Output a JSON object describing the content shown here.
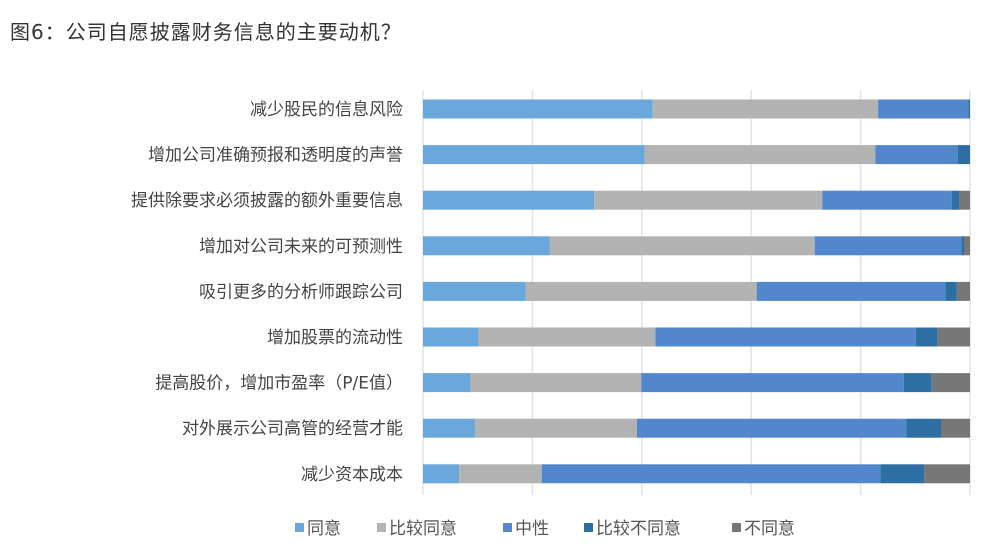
{
  "title": "图6：公司自愿披露财务信息的主要动机？",
  "chart_data": {
    "type": "bar",
    "orientation": "horizontal",
    "stacked": "percent",
    "title": "图6：公司自愿披露财务信息的主要动机？",
    "xlabel": "",
    "ylabel": "",
    "xlim": [
      0,
      100
    ],
    "grid": true,
    "legend": "bottom",
    "categories": [
      "减少股民的信息风险",
      "增加公司准确预报和透明度的声誉",
      "提供除要求必须披露的额外重要信息",
      "增加对公司未来的可预测性",
      "吸引更多的分析师跟踪公司",
      "增加股票的流动性",
      "提高股价，增加市盈率（P/E值）",
      "对外展示公司高管的经营才能",
      "减少资本成本"
    ],
    "series": [
      {
        "name": "同意",
        "color": "#6aa8dc",
        "values": [
          42.0,
          40.5,
          31.3,
          23.2,
          18.8,
          10.2,
          8.7,
          9.5,
          6.6
        ]
      },
      {
        "name": "比较同意",
        "color": "#b3b3b3",
        "values": [
          41.2,
          42.2,
          41.7,
          48.4,
          42.2,
          32.3,
          31.2,
          29.6,
          15.1
        ]
      },
      {
        "name": "中性",
        "color": "#5287cc",
        "values": [
          16.5,
          15.1,
          23.7,
          26.8,
          34.5,
          47.6,
          48.0,
          49.3,
          61.9
        ]
      },
      {
        "name": "比较不同意",
        "color": "#2e6fa3",
        "values": [
          0.3,
          2.2,
          1.4,
          0.5,
          2.1,
          4.0,
          5.1,
          6.3,
          8.0
        ]
      },
      {
        "name": "不同意",
        "color": "#777777",
        "values": [
          0.0,
          0.0,
          1.9,
          1.1,
          2.4,
          5.9,
          7.0,
          5.3,
          8.4
        ]
      }
    ]
  }
}
